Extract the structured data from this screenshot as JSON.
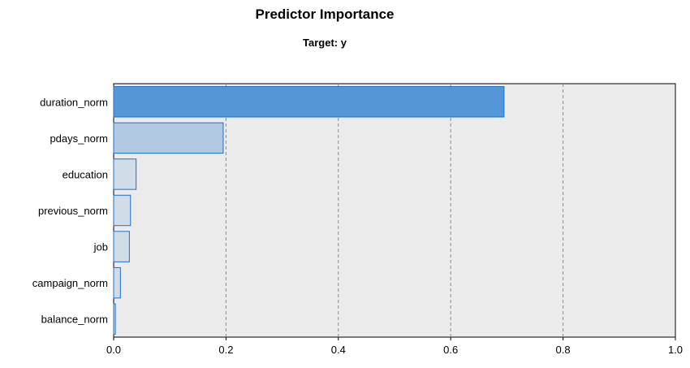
{
  "chart_data": {
    "type": "bar",
    "orientation": "horizontal",
    "title": "Predictor Importance",
    "subtitle": "Target: y",
    "categories": [
      "duration_norm",
      "pdays_norm",
      "education",
      "previous_norm",
      "job",
      "campaign_norm",
      "balance_norm"
    ],
    "values": [
      0.695,
      0.195,
      0.04,
      0.03,
      0.028,
      0.012,
      0.003
    ],
    "xlim": [
      0,
      1.0
    ],
    "xticks": [
      "0.0",
      "0.2",
      "0.4",
      "0.6",
      "0.8",
      "1.0"
    ],
    "grid": "vertical dashed",
    "colors": {
      "top_bar": "#5596d6",
      "second_bar": "#b1c9e3",
      "other_bars": "#d0dce8",
      "bar_border": "#1f6fc5",
      "plot_background": "#ebebeb"
    }
  }
}
